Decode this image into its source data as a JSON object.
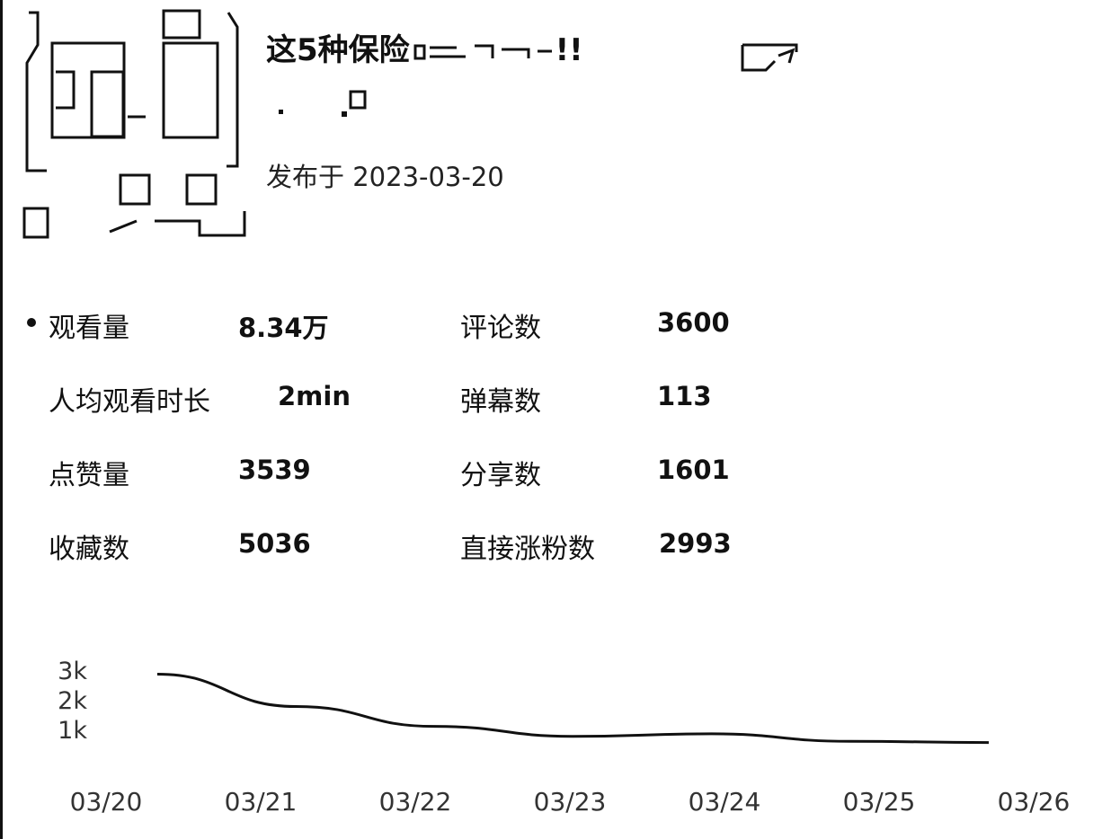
{
  "video": {
    "title": "这5种保险",
    "title_suffix": "!!",
    "published": "发布于 2023-03-20"
  },
  "stats": [
    {
      "label": "观看量",
      "value": "8.34万"
    },
    {
      "label": "评论数",
      "value": "3600"
    },
    {
      "label": "人均观看时长",
      "value": "2min"
    },
    {
      "label": "弹幕数",
      "value": "113"
    },
    {
      "label": "点赞量",
      "value": "3539"
    },
    {
      "label": "分享数",
      "value": "1601"
    },
    {
      "label": "收藏数",
      "value": "5036"
    },
    {
      "label": "直接涨粉数",
      "value": "2993"
    }
  ],
  "icons": {
    "thumbnail": "video-thumbnail",
    "share": "share-icon",
    "bullet": "bullet-dot"
  },
  "chart_data": {
    "type": "line",
    "x": [
      "03/20",
      "03/21",
      "03/22",
      "03/23",
      "03/24",
      "03/25",
      "03/26"
    ],
    "series": [
      {
        "values": [
          2800,
          1500,
          700,
          300,
          400,
          100,
          50
        ]
      }
    ],
    "y_ticks": [
      "3k",
      "2k",
      "1k"
    ],
    "ylim": [
      0,
      3000
    ],
    "grid": false,
    "line_color": "#111111"
  }
}
